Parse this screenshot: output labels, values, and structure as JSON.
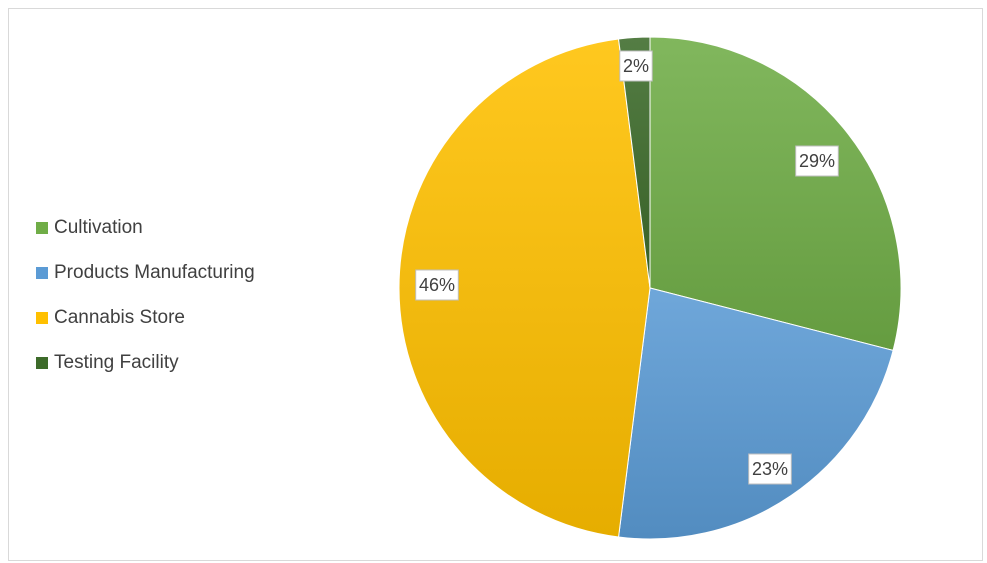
{
  "chart_data": {
    "type": "pie",
    "title": "",
    "categories": [
      "Cultivation",
      "Products Manufacturing",
      "Cannabis Store",
      "Testing Facility"
    ],
    "values": [
      29,
      23,
      46,
      2
    ],
    "data_labels": [
      "29%",
      "23%",
      "46%",
      "2%"
    ],
    "colors": [
      "#70ad47",
      "#5b9bd5",
      "#ffc000",
      "#3d6b2a"
    ],
    "legend_position": "left"
  }
}
